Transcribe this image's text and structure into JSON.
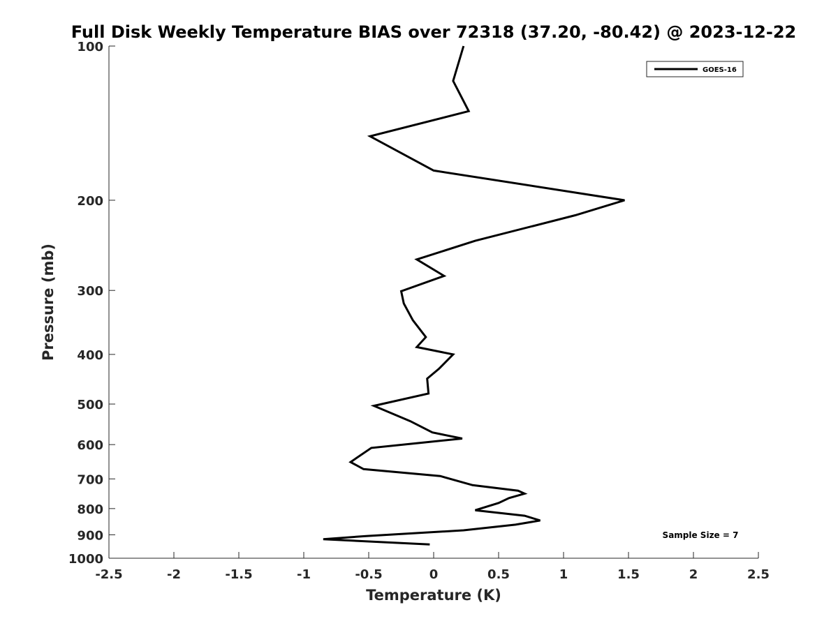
{
  "chart_data": {
    "type": "line",
    "title": "Full Disk Weekly Temperature BIAS over 72318 (37.20, -80.42) @ 2023-12-22",
    "xlabel": "Temperature (K)",
    "ylabel": "Pressure (mb)",
    "xlim": [
      -2.5,
      2.5
    ],
    "ylim": [
      100,
      1000
    ],
    "y_scale": "log",
    "y_reversed": true,
    "grid": false,
    "legend_position": "top-right",
    "x_ticks": [
      "-2.5",
      "-2",
      "-1.5",
      "-1",
      "-0.5",
      "0",
      "0.5",
      "1",
      "1.5",
      "2",
      "2.5"
    ],
    "y_ticks": [
      "100",
      "200",
      "300",
      "400",
      "500",
      "600",
      "700",
      "800",
      "900",
      "1000"
    ],
    "annotation": "Sample Size = 7",
    "series": [
      {
        "name": "GOES-16",
        "color": "#000000",
        "points": [
          [
            0.23,
            100
          ],
          [
            0.15,
            117
          ],
          [
            0.27,
            134
          ],
          [
            -0.49,
            150
          ],
          [
            0.0,
            175
          ],
          [
            1.47,
            200
          ],
          [
            1.09,
            214
          ],
          [
            0.32,
            240
          ],
          [
            -0.13,
            261
          ],
          [
            0.08,
            281
          ],
          [
            -0.25,
            301
          ],
          [
            -0.23,
            318
          ],
          [
            -0.16,
            343
          ],
          [
            -0.06,
            370
          ],
          [
            -0.13,
            387
          ],
          [
            0.15,
            400
          ],
          [
            0.04,
            427
          ],
          [
            -0.05,
            446
          ],
          [
            -0.04,
            477
          ],
          [
            -0.46,
            504
          ],
          [
            -0.18,
            540
          ],
          [
            -0.01,
            568
          ],
          [
            0.22,
            584
          ],
          [
            -0.48,
            609
          ],
          [
            -0.64,
            649
          ],
          [
            -0.54,
            670
          ],
          [
            0.05,
            691
          ],
          [
            0.3,
            720
          ],
          [
            0.65,
            738
          ],
          [
            0.7,
            748
          ],
          [
            0.58,
            763
          ],
          [
            0.5,
            780
          ],
          [
            0.32,
            806
          ],
          [
            0.7,
            826
          ],
          [
            0.82,
            844
          ],
          [
            0.63,
            860
          ],
          [
            0.23,
            882
          ],
          [
            -0.52,
            905
          ],
          [
            -0.85,
            918
          ],
          [
            -0.03,
            940
          ]
        ]
      }
    ]
  }
}
